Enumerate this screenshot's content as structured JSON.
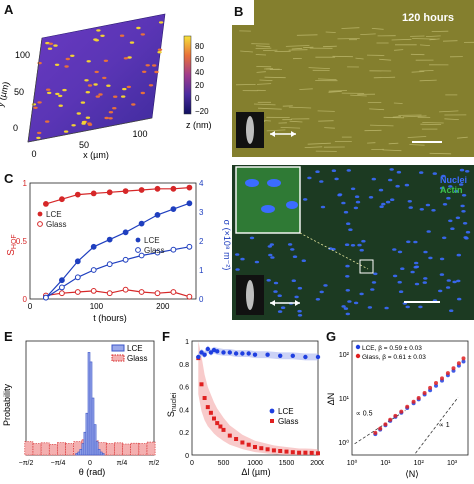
{
  "panels": {
    "A": {
      "label": "A",
      "ylabel": "y (µm)",
      "xlabel": "x (µm)",
      "yticks": [
        "0",
        "50",
        "100"
      ],
      "xticks": [
        "0",
        "50",
        "100"
      ],
      "colorbar": {
        "unit": "z (nm)",
        "ticks": [
          "80",
          "60",
          "40",
          "20",
          "0",
          "−20"
        ]
      },
      "colors": {
        "low": "#1a1a8c",
        "mid": "#7a3cbf",
        "high": "#f2d233"
      }
    },
    "B": {
      "label": "B",
      "time_label": "120 hours",
      "colors": {
        "bg": "#8a8530",
        "line": "#c9c47a"
      }
    },
    "C": {
      "label": "C",
      "xlabel": "t (hours)",
      "ylabel_left": "S",
      "ylabel_left_sub": "HOF",
      "ylabel_right": "σ (×10⁸ m⁻²)"
    },
    "D": {
      "label": "D",
      "legend": [
        "Nuclei",
        "Actin"
      ],
      "colors": {
        "nuclei": "#3b6cff",
        "actin": "#2a8a3a"
      }
    },
    "E": {
      "label": "E",
      "ylabel": "Probability",
      "xlabel": "θ (rad)"
    },
    "F": {
      "label": "F",
      "ylabel": "S",
      "ylabel_sub": "nuclei",
      "xlabel": "Δl (µm)"
    },
    "G": {
      "label": "G",
      "ylabel": "ΔN",
      "xlabel": "⟨N⟩",
      "slope1": "∝ 0.5",
      "slope2": "∝ 1"
    }
  },
  "chart_data": [
    {
      "panel": "C",
      "type": "line",
      "x_range": [
        0,
        250
      ],
      "xticks": [
        "0",
        "100",
        "200"
      ],
      "left_axis": {
        "ylim": [
          0,
          1
        ],
        "ticks": [
          "0",
          "0.5",
          "1"
        ],
        "color": "#d62728"
      },
      "right_axis": {
        "ylim": [
          0,
          4
        ],
        "ticks": [
          "0",
          "1",
          "2",
          "3",
          "4"
        ],
        "color": "#1f3fbf"
      },
      "legend_left": [
        "LCE",
        "Glass"
      ],
      "legend_right": [
        "LCE",
        "Glass"
      ],
      "series": [
        {
          "name": "LCE",
          "axis": "left",
          "color": "#d62728",
          "x": [
            24,
            48,
            72,
            96,
            120,
            144,
            168,
            192,
            216,
            240
          ],
          "y": [
            0.82,
            0.86,
            0.9,
            0.91,
            0.92,
            0.93,
            0.94,
            0.95,
            0.95,
            0.96
          ]
        },
        {
          "name": "Glass",
          "axis": "left",
          "color": "#d62728",
          "x": [
            24,
            48,
            72,
            96,
            120,
            144,
            168,
            192,
            216,
            240
          ],
          "y": [
            0.03,
            0.05,
            0.06,
            0.07,
            0.05,
            0.08,
            0.06,
            0.05,
            0.06,
            0.02
          ]
        },
        {
          "name": "LCE",
          "axis": "right",
          "color": "#1f3fbf",
          "x": [
            24,
            48,
            72,
            96,
            120,
            144,
            168,
            192,
            216,
            240
          ],
          "y": [
            0.05,
            0.65,
            1.3,
            1.8,
            2.05,
            2.3,
            2.6,
            2.9,
            3.1,
            3.3
          ]
        },
        {
          "name": "Glass",
          "axis": "right",
          "color": "#1f3fbf",
          "x": [
            24,
            48,
            72,
            96,
            120,
            144,
            168,
            192,
            216,
            240
          ],
          "y": [
            0.05,
            0.4,
            0.75,
            1.0,
            1.2,
            1.35,
            1.5,
            1.6,
            1.7,
            1.8
          ]
        }
      ]
    },
    {
      "panel": "E",
      "type": "bar",
      "x_range": [
        -1.5708,
        1.5708
      ],
      "xticks": [
        "−π/2",
        "−π/4",
        "0",
        "π/4",
        "π/2"
      ],
      "ylim": [
        0,
        0.3
      ],
      "legend": [
        "LCE",
        "Glass"
      ],
      "series": [
        {
          "name": "LCE",
          "color": "#3b55c8",
          "x": [
            -0.325,
            -0.275,
            -0.225,
            -0.175,
            -0.125,
            -0.075,
            -0.025,
            0.025,
            0.075,
            0.125,
            0.175,
            0.225,
            0.275,
            0.325
          ],
          "y": [
            0.004,
            0.008,
            0.015,
            0.03,
            0.06,
            0.11,
            0.27,
            0.245,
            0.15,
            0.08,
            0.035,
            0.015,
            0.008,
            0.004
          ]
        },
        {
          "name": "Glass",
          "color": "#d62728",
          "x": [
            -1.5,
            -1.3,
            -1.1,
            -0.9,
            -0.7,
            -0.5,
            -0.3,
            -0.1,
            0.1,
            0.3,
            0.5,
            0.7,
            0.9,
            1.1,
            1.3,
            1.5
          ],
          "y": [
            0.035,
            0.03,
            0.032,
            0.028,
            0.033,
            0.03,
            0.035,
            0.04,
            0.038,
            0.033,
            0.03,
            0.032,
            0.029,
            0.031,
            0.03,
            0.034
          ]
        }
      ]
    },
    {
      "panel": "F",
      "type": "scatter",
      "x_range": [
        0,
        2000
      ],
      "xticks": [
        "0",
        "500",
        "1000",
        "1500",
        "2000"
      ],
      "ylim": [
        0,
        1
      ],
      "yticks": [
        "0",
        "0.2",
        "0.4",
        "0.6",
        "0.8",
        "1"
      ],
      "legend": [
        "LCE",
        "Glass"
      ],
      "series": [
        {
          "name": "LCE",
          "color": "#1f3fe0",
          "x": [
            100,
            150,
            200,
            250,
            300,
            350,
            400,
            500,
            600,
            700,
            800,
            900,
            1000,
            1200,
            1400,
            1600,
            1800,
            2000
          ],
          "y": [
            0.86,
            0.9,
            0.88,
            0.93,
            0.9,
            0.92,
            0.91,
            0.9,
            0.9,
            0.89,
            0.89,
            0.89,
            0.88,
            0.88,
            0.87,
            0.87,
            0.86,
            0.86
          ]
        },
        {
          "name": "Glass",
          "color": "#e02020",
          "x": [
            100,
            150,
            200,
            250,
            300,
            350,
            400,
            450,
            500,
            600,
            700,
            800,
            900,
            1000,
            1100,
            1200,
            1300,
            1400,
            1500,
            1600,
            1700,
            1800,
            1900,
            2000
          ],
          "y": [
            0.85,
            0.62,
            0.5,
            0.42,
            0.37,
            0.32,
            0.28,
            0.25,
            0.22,
            0.17,
            0.14,
            0.11,
            0.09,
            0.07,
            0.06,
            0.05,
            0.04,
            0.035,
            0.03,
            0.025,
            0.02,
            0.02,
            0.018,
            0.015
          ]
        }
      ]
    },
    {
      "panel": "G",
      "type": "scatter",
      "x_scale": "log",
      "y_scale": "log",
      "x_range": [
        1,
        3000
      ],
      "y_range": [
        0.5,
        200
      ],
      "xticks": [
        "10⁰",
        "10¹",
        "10²",
        "10³"
      ],
      "yticks": [
        "10⁰",
        "10¹",
        "10²"
      ],
      "legend": [
        "LCE, β = 0.59 ± 0.03",
        "Glass, β = 0.61 ± 0.03"
      ],
      "series": [
        {
          "name": "LCE, β = 0.59 ± 0.03",
          "color": "#1f3fe0",
          "x": [
            5,
            7,
            10,
            14,
            20,
            30,
            45,
            70,
            100,
            150,
            220,
            330,
            500,
            750,
            1100,
            1600,
            2200
          ],
          "y": [
            1.5,
            1.9,
            2.4,
            3.0,
            3.7,
            4.6,
            5.9,
            7.6,
            9.3,
            12,
            15,
            19,
            25,
            33,
            42,
            55,
            68
          ]
        },
        {
          "name": "Glass, β = 0.61 ± 0.03",
          "color": "#e02020",
          "x": [
            5,
            7,
            10,
            14,
            20,
            30,
            45,
            70,
            100,
            150,
            220,
            330,
            500,
            750,
            1100,
            1600,
            2200
          ],
          "y": [
            1.6,
            2.0,
            2.5,
            3.2,
            3.9,
            4.9,
            6.3,
            8.2,
            10,
            13,
            17,
            22,
            28,
            37,
            48,
            62,
            80
          ]
        }
      ]
    }
  ]
}
